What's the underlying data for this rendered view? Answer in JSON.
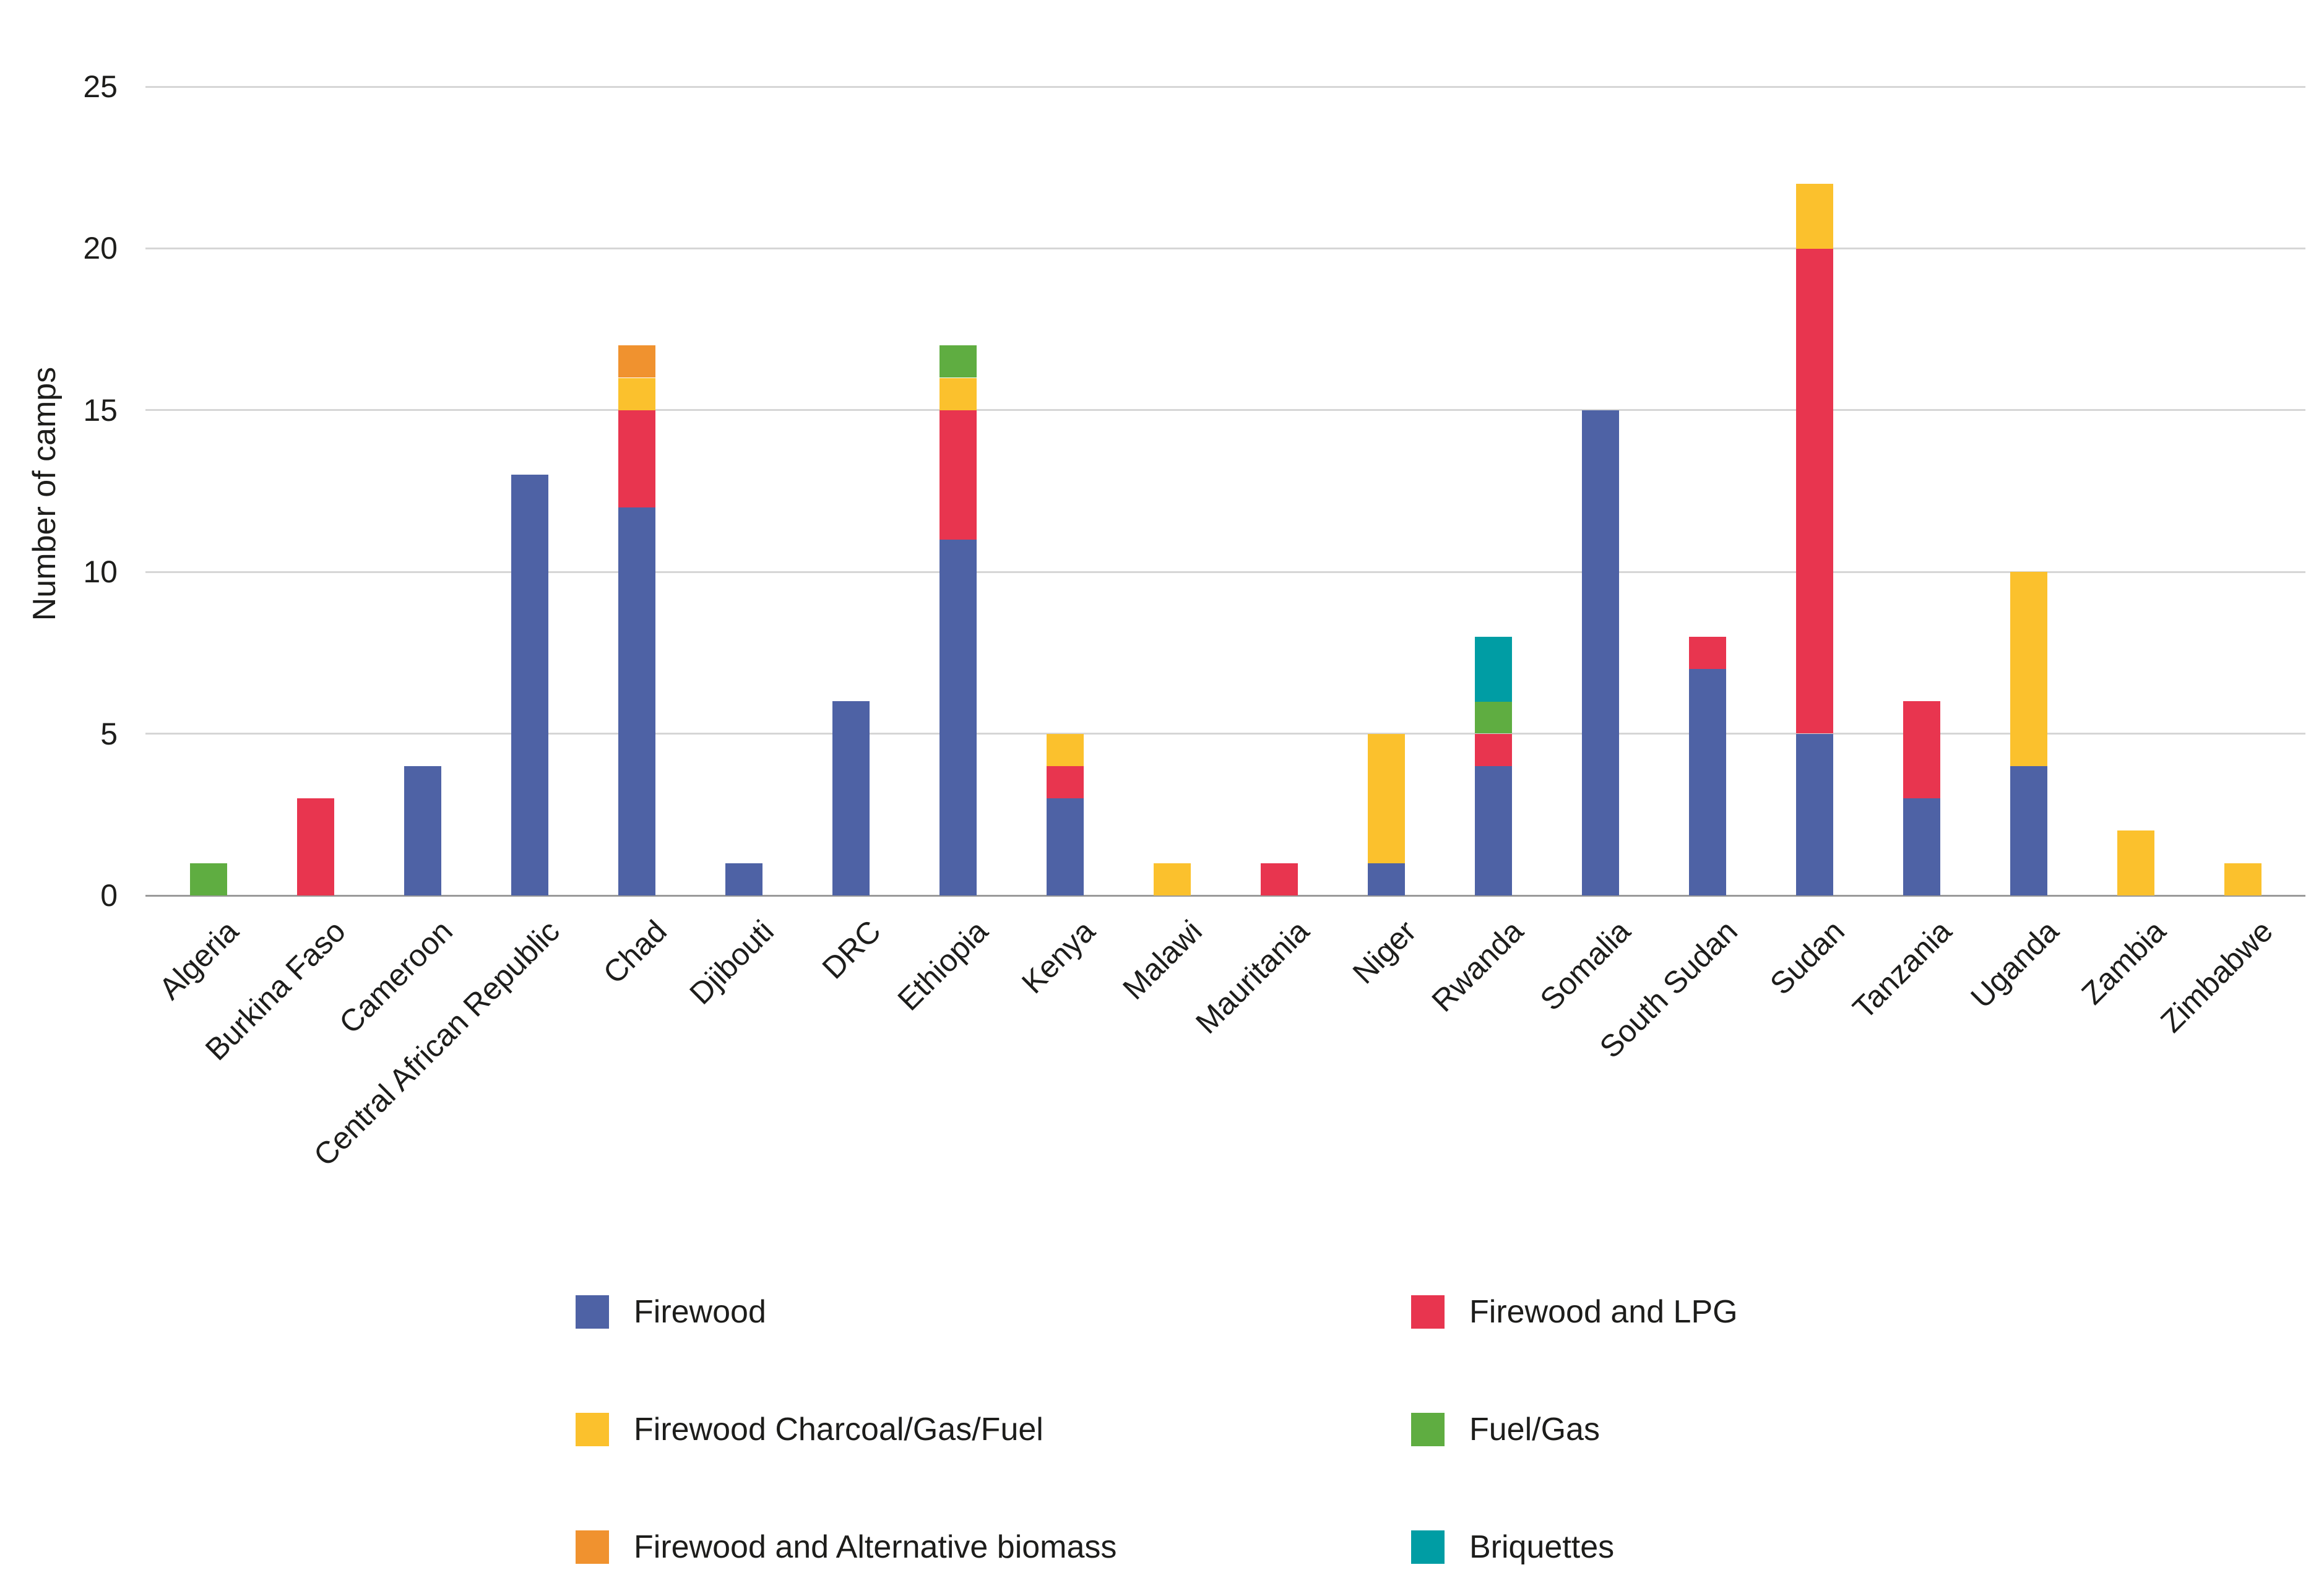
{
  "chart_data": {
    "type": "bar",
    "stacked": true,
    "title": "",
    "xlabel": "",
    "ylabel": "Number of camps",
    "ylim": [
      0,
      25
    ],
    "yticks": [
      0,
      5,
      10,
      15,
      20,
      25
    ],
    "grid": true,
    "legend_position": "bottom",
    "categories": [
      "Algeria",
      "Burkina Faso",
      "Cameroon",
      "Central African Republic",
      "Chad",
      "Djibouti",
      "DRC",
      "Ethiopia",
      "Kenya",
      "Malawi",
      "Mauritania",
      "Niger",
      "Rwanda",
      "Somalia",
      "South Sudan",
      "Sudan",
      "Tanzania",
      "Uganda",
      "Zambia",
      "Zimbabwe"
    ],
    "series": [
      {
        "name": "Firewood",
        "color": "#4e62a5",
        "values": [
          0,
          0,
          4,
          13,
          12,
          1,
          6,
          11,
          3,
          0,
          0,
          1,
          4,
          15,
          7,
          5,
          3,
          4,
          0,
          0
        ]
      },
      {
        "name": "Firewood and LPG",
        "color": "#e8354f",
        "values": [
          0,
          3,
          0,
          0,
          3,
          0,
          0,
          4,
          1,
          0,
          1,
          0,
          1,
          0,
          1,
          15,
          3,
          0,
          0,
          0
        ]
      },
      {
        "name": "Firewood Charcoal/Gas/Fuel",
        "color": "#fbc12d",
        "values": [
          0,
          0,
          0,
          0,
          1,
          0,
          0,
          1,
          1,
          1,
          0,
          4,
          0,
          0,
          0,
          2,
          0,
          6,
          2,
          1
        ]
      },
      {
        "name": "Fuel/Gas",
        "color": "#5fad41",
        "values": [
          1,
          0,
          0,
          0,
          0,
          0,
          0,
          1,
          0,
          0,
          0,
          0,
          1,
          0,
          0,
          0,
          0,
          0,
          0,
          0
        ]
      },
      {
        "name": "Firewood and Alternative biomass",
        "color": "#f0922f",
        "values": [
          0,
          0,
          0,
          0,
          1,
          0,
          0,
          0,
          0,
          0,
          0,
          0,
          0,
          0,
          0,
          0,
          0,
          0,
          0,
          0
        ]
      },
      {
        "name": "Briquettes",
        "color": "#009da4",
        "values": [
          0,
          0,
          0,
          0,
          0,
          0,
          0,
          0,
          0,
          0,
          0,
          0,
          2,
          0,
          0,
          0,
          0,
          0,
          0,
          0
        ]
      }
    ]
  }
}
